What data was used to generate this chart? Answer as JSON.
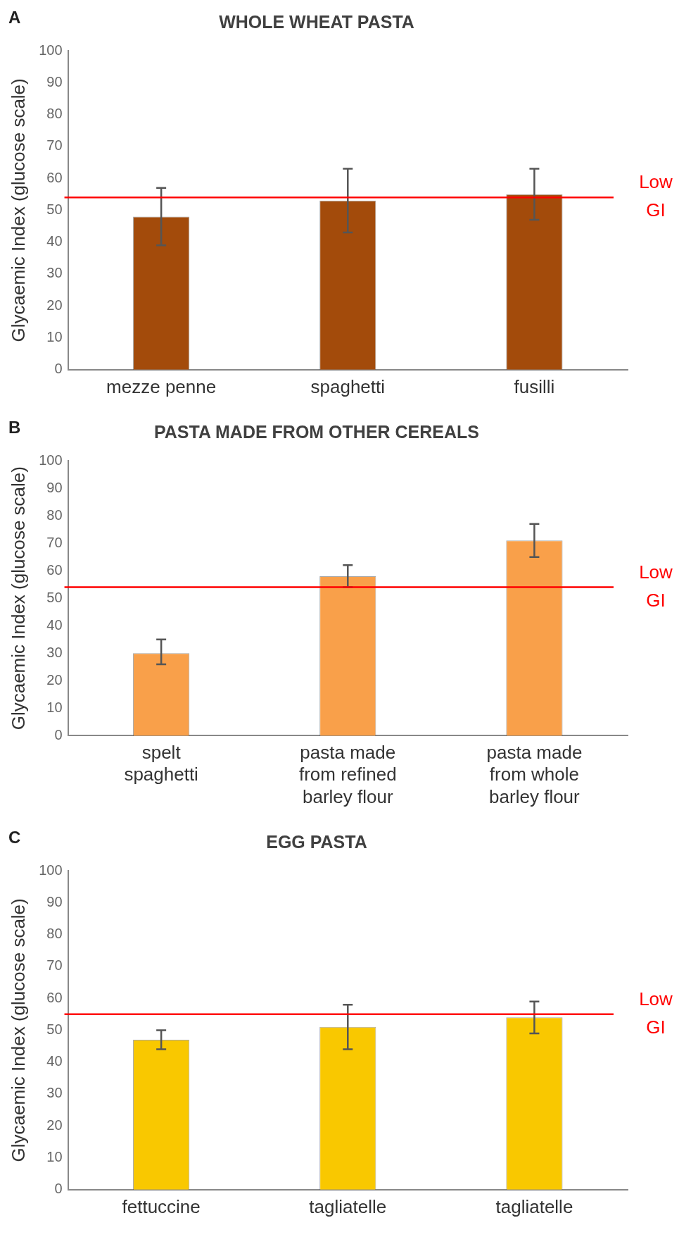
{
  "chart_data": [
    {
      "type": "bar",
      "title": "WHOLE WHEAT PASTA",
      "ylabel": "Glycaemic Index (glucose scale)",
      "annotations": [
        "A"
      ],
      "categories": [
        "mezze penne",
        "spaghetti",
        "fusilli"
      ],
      "series": [
        {
          "color": "#a34b0b",
          "values": [
            48,
            53,
            55
          ],
          "errors": [
            [
              39,
              57
            ],
            [
              43,
              63
            ],
            [
              47,
              63
            ]
          ]
        }
      ],
      "ylim": [
        0,
        100
      ],
      "yticks": [
        0,
        10,
        20,
        30,
        40,
        50,
        60,
        70,
        80,
        90,
        100
      ],
      "grid": false,
      "legend": false,
      "ref_lines": [
        {
          "axis": "y",
          "value": 54,
          "label": "Low GI",
          "color": "#ff0000"
        }
      ]
    },
    {
      "type": "bar",
      "title": "PASTA MADE FROM OTHER CEREALS",
      "ylabel": "Glycaemic Index (glucose scale)",
      "annotations": [
        "B"
      ],
      "categories": [
        "spelt spaghetti",
        "pasta made from refined barley flour",
        "pasta made from whole barley flour"
      ],
      "series": [
        {
          "color": "#f9a04a",
          "values": [
            30,
            58,
            71
          ],
          "errors": [
            [
              26,
              35
            ],
            [
              54,
              62
            ],
            [
              65,
              77
            ]
          ]
        }
      ],
      "ylim": [
        0,
        100
      ],
      "yticks": [
        0,
        10,
        20,
        30,
        40,
        50,
        60,
        70,
        80,
        90,
        100
      ],
      "grid": false,
      "legend": false,
      "ref_lines": [
        {
          "axis": "y",
          "value": 54,
          "label": "Low GI",
          "color": "#ff0000"
        }
      ]
    },
    {
      "type": "bar",
      "title": "EGG PASTA",
      "ylabel": "Glycaemic Index (glucose scale)",
      "annotations": [
        "C"
      ],
      "categories": [
        "fettuccine",
        "tagliatelle",
        "tagliatelle"
      ],
      "series": [
        {
          "color": "#f9c800",
          "values": [
            47,
            51,
            54
          ],
          "errors": [
            [
              44,
              50
            ],
            [
              44,
              58
            ],
            [
              49,
              59
            ]
          ]
        }
      ],
      "ylim": [
        0,
        100
      ],
      "yticks": [
        0,
        10,
        20,
        30,
        40,
        50,
        60,
        70,
        80,
        90,
        100
      ],
      "grid": false,
      "legend": false,
      "ref_lines": [
        {
          "axis": "y",
          "value": 55,
          "label": "Low GI",
          "color": "#ff0000"
        }
      ]
    }
  ]
}
